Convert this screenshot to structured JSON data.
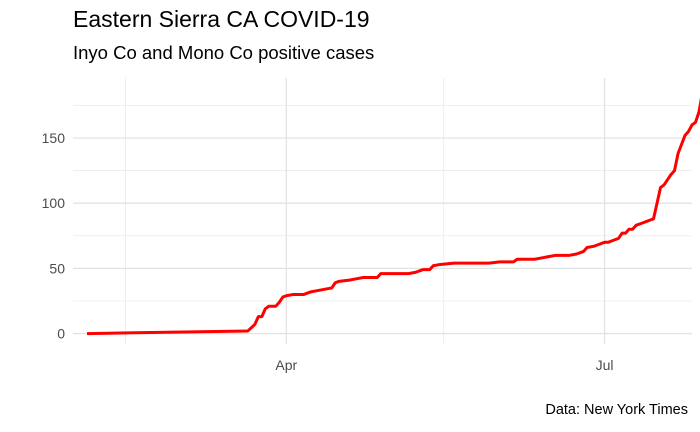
{
  "chart_data": {
    "type": "line",
    "title": "Eastern Sierra CA COVID-19",
    "subtitle": "Inyo Co and Mono Co positive cases",
    "caption": "Data: New York Times",
    "xlabel": "",
    "ylabel": "",
    "grid": true,
    "legend": "none",
    "line_color": "#ff0000",
    "x_axis": {
      "type": "date",
      "range": [
        "2020-01-31",
        "2020-07-26"
      ],
      "ticks": [
        {
          "date": "2020-04-01",
          "label": "Apr"
        },
        {
          "date": "2020-07-01",
          "label": "Jul"
        }
      ],
      "minor_breaks": [
        "2020-02-15",
        "2020-05-16"
      ]
    },
    "y_axis": {
      "range": [
        -8,
        196
      ],
      "ticks": [
        0,
        50,
        100,
        150
      ]
    },
    "series": [
      {
        "points": [
          [
            "2020-02-04",
            0
          ],
          [
            "2020-03-21",
            2
          ],
          [
            "2020-03-23",
            7
          ],
          [
            "2020-03-24",
            13
          ],
          [
            "2020-03-25",
            13
          ],
          [
            "2020-03-26",
            19
          ],
          [
            "2020-03-27",
            21
          ],
          [
            "2020-03-29",
            21
          ],
          [
            "2020-03-30",
            24
          ],
          [
            "2020-03-31",
            28
          ],
          [
            "2020-04-01",
            29
          ],
          [
            "2020-04-03",
            30
          ],
          [
            "2020-04-06",
            30
          ],
          [
            "2020-04-08",
            32
          ],
          [
            "2020-04-10",
            33
          ],
          [
            "2020-04-14",
            35
          ],
          [
            "2020-04-15",
            39
          ],
          [
            "2020-04-16",
            40
          ],
          [
            "2020-04-19",
            41
          ],
          [
            "2020-04-21",
            42
          ],
          [
            "2020-04-23",
            43
          ],
          [
            "2020-04-27",
            43
          ],
          [
            "2020-04-28",
            46
          ],
          [
            "2020-05-06",
            46
          ],
          [
            "2020-05-08",
            47
          ],
          [
            "2020-05-10",
            49
          ],
          [
            "2020-05-12",
            49
          ],
          [
            "2020-05-13",
            52
          ],
          [
            "2020-05-15",
            53
          ],
          [
            "2020-05-19",
            54
          ],
          [
            "2020-05-29",
            54
          ],
          [
            "2020-06-01",
            55
          ],
          [
            "2020-06-05",
            55
          ],
          [
            "2020-06-06",
            57
          ],
          [
            "2020-06-08",
            57
          ],
          [
            "2020-06-11",
            57
          ],
          [
            "2020-06-13",
            58
          ],
          [
            "2020-06-15",
            59
          ],
          [
            "2020-06-17",
            60
          ],
          [
            "2020-06-21",
            60
          ],
          [
            "2020-06-23",
            61
          ],
          [
            "2020-06-25",
            63
          ],
          [
            "2020-06-26",
            66
          ],
          [
            "2020-06-28",
            67
          ],
          [
            "2020-06-29",
            68
          ],
          [
            "2020-07-01",
            70
          ],
          [
            "2020-07-02",
            70
          ],
          [
            "2020-07-03",
            71
          ],
          [
            "2020-07-05",
            73
          ],
          [
            "2020-07-06",
            77
          ],
          [
            "2020-07-07",
            77
          ],
          [
            "2020-07-08",
            80
          ],
          [
            "2020-07-09",
            80
          ],
          [
            "2020-07-10",
            83
          ],
          [
            "2020-07-11",
            84
          ],
          [
            "2020-07-12",
            85
          ],
          [
            "2020-07-13",
            86
          ],
          [
            "2020-07-14",
            87
          ],
          [
            "2020-07-15",
            88
          ],
          [
            "2020-07-16",
            100
          ],
          [
            "2020-07-17",
            112
          ],
          [
            "2020-07-18",
            114
          ],
          [
            "2020-07-19",
            118
          ],
          [
            "2020-07-20",
            122
          ],
          [
            "2020-07-21",
            125
          ],
          [
            "2020-07-22",
            138
          ],
          [
            "2020-07-23",
            145
          ],
          [
            "2020-07-24",
            152
          ],
          [
            "2020-07-25",
            155
          ],
          [
            "2020-07-26",
            160
          ],
          [
            "2020-07-27",
            162
          ],
          [
            "2020-07-28",
            170
          ],
          [
            "2020-07-29",
            185
          ],
          [
            "2020-07-30",
            186
          ],
          [
            "2020-07-31",
            189
          ]
        ]
      }
    ]
  }
}
